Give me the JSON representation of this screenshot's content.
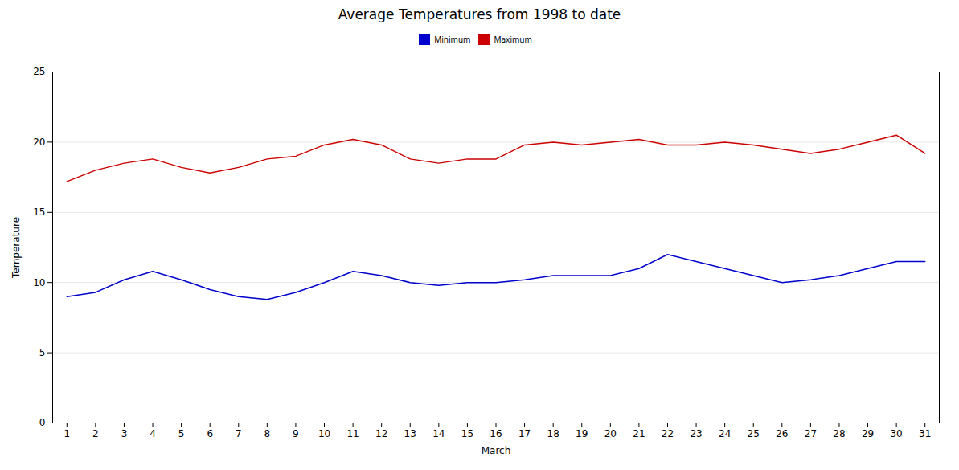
{
  "chart_data": {
    "type": "line",
    "title": "Average Temperatures from 1998 to date",
    "xlabel": "March",
    "ylabel": "Temperature",
    "x": [
      1,
      2,
      3,
      4,
      5,
      6,
      7,
      8,
      9,
      10,
      11,
      12,
      13,
      14,
      15,
      16,
      17,
      18,
      19,
      20,
      21,
      22,
      23,
      24,
      25,
      26,
      27,
      28,
      29,
      30,
      31
    ],
    "series": [
      {
        "name": "Minimum",
        "color": "#0000cc",
        "values": [
          9.0,
          9.3,
          10.2,
          10.8,
          10.2,
          9.5,
          9.0,
          8.8,
          9.3,
          10.0,
          10.8,
          10.5,
          10.0,
          9.8,
          10.0,
          10.0,
          10.2,
          10.5,
          10.5,
          10.5,
          11.0,
          12.0,
          11.5,
          11.0,
          10.5,
          10.0,
          10.2,
          10.5,
          11.0,
          11.5,
          11.5
        ]
      },
      {
        "name": "Maximum",
        "color": "#cc0000",
        "values": [
          17.2,
          18.0,
          18.5,
          18.8,
          18.2,
          17.8,
          18.2,
          18.8,
          19.0,
          19.8,
          20.2,
          19.8,
          18.8,
          18.5,
          18.8,
          18.8,
          19.8,
          20.0,
          19.8,
          20.0,
          20.2,
          19.8,
          19.8,
          20.0,
          19.8,
          19.5,
          19.2,
          19.5,
          20.0,
          20.5,
          19.2
        ]
      }
    ],
    "xlim": [
      0.5,
      31.5
    ],
    "ylim": [
      0,
      25
    ],
    "xticks": [
      1,
      2,
      3,
      4,
      5,
      6,
      7,
      8,
      9,
      10,
      11,
      12,
      13,
      14,
      15,
      16,
      17,
      18,
      19,
      20,
      21,
      22,
      23,
      24,
      25,
      26,
      27,
      28,
      29,
      30,
      31
    ],
    "yticks": [
      0,
      5,
      10,
      15,
      20,
      25
    ],
    "grid": true,
    "legend": "upper center"
  }
}
